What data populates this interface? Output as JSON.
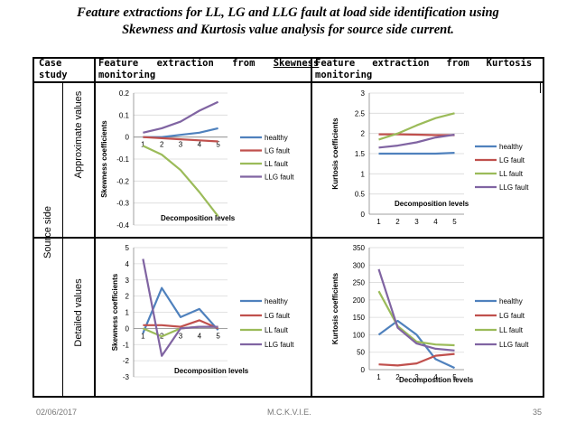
{
  "title_line1": "Feature extractions for LL, LG and LLG fault at load side identification using",
  "title_line2": "Skewness and Kurtosis value analysis for source side current.",
  "table": {
    "col1_line1": "Case",
    "col1_line2": "study",
    "col2_prefix": "Feature extraction from ",
    "col2_word": "Skewness",
    "col2_line2": "monitoring",
    "col3_line1": "Feature   extraction   from   Kurtosis",
    "col3_line2": "monitoring",
    "row_group": "Source side",
    "row1": "Approximate values",
    "row2": "Detailed values"
  },
  "footer": {
    "date": "02/06/2017",
    "org": "M.C.K.V.I.E.",
    "page": "35"
  },
  "colors": {
    "healthy": "#4f81bd",
    "lg": "#c0504d",
    "ll": "#9bbb59",
    "llg": "#8064a2",
    "grid": "#d9d9d9"
  },
  "chart_data": [
    {
      "type": "line",
      "id": "skew-approx",
      "xlabel": "Decomposition levels",
      "ylabel": "Skewness coefficients",
      "x": [
        1,
        2,
        3,
        4,
        5
      ],
      "ylim": [
        -0.4,
        0.2
      ],
      "yticks": [
        0.2,
        0.1,
        0,
        -0.1,
        -0.2,
        -0.3,
        -0.4
      ],
      "ytick_labels": [
        "0.2",
        "0.1",
        "0",
        "-0.1",
        "-0.2",
        "-0.3",
        "-0.4"
      ],
      "xaxis_at": 0,
      "legend": "right",
      "series": [
        {
          "name": "healthy",
          "values": [
            0.0,
            0.0,
            0.01,
            0.02,
            0.04
          ]
        },
        {
          "name": "LG fault",
          "values": [
            0.0,
            -0.005,
            -0.01,
            -0.015,
            -0.02
          ]
        },
        {
          "name": "LL fault",
          "values": [
            -0.04,
            -0.08,
            -0.15,
            -0.25,
            -0.36
          ]
        },
        {
          "name": "LLG fault",
          "values": [
            0.02,
            0.04,
            0.07,
            0.12,
            0.16
          ]
        }
      ]
    },
    {
      "type": "line",
      "id": "kurt-approx",
      "xlabel": "Decomposition levels",
      "ylabel": "Kurtosis coefficients",
      "x": [
        1,
        2,
        3,
        4,
        5
      ],
      "ylim": [
        0,
        3
      ],
      "yticks": [
        3,
        2.5,
        2,
        1.5,
        1,
        0.5,
        0
      ],
      "ytick_labels": [
        "3",
        "2.5",
        "2",
        "1.5",
        "1",
        "0.5",
        "0"
      ],
      "xaxis_at": 0,
      "legend": "right",
      "series": [
        {
          "name": "healthy",
          "values": [
            1.5,
            1.5,
            1.5,
            1.5,
            1.52
          ]
        },
        {
          "name": "LG fault",
          "values": [
            1.98,
            1.98,
            1.97,
            1.96,
            1.96
          ]
        },
        {
          "name": "LL fault",
          "values": [
            1.85,
            2.0,
            2.2,
            2.38,
            2.5
          ]
        },
        {
          "name": "LLG fault",
          "values": [
            1.65,
            1.7,
            1.78,
            1.9,
            1.97
          ]
        }
      ]
    },
    {
      "type": "line",
      "id": "skew-detail",
      "xlabel": "Decomposition levels",
      "ylabel": "Skewness coefficients",
      "x": [
        1,
        2,
        3,
        4,
        5
      ],
      "ylim": [
        -3,
        5
      ],
      "yticks": [
        5,
        4,
        3,
        2,
        1,
        0,
        -1,
        -2,
        -3
      ],
      "ytick_labels": [
        "5",
        "4",
        "3",
        "2",
        "1",
        "0",
        "-1",
        "-2",
        "-3"
      ],
      "xaxis_at": 0,
      "legend": "right",
      "series": [
        {
          "name": "healthy",
          "values": [
            -0.3,
            2.5,
            0.7,
            1.2,
            -0.1
          ]
        },
        {
          "name": "LG fault",
          "values": [
            0.2,
            0.2,
            0.1,
            0.5,
            0.0
          ]
        },
        {
          "name": "LL fault",
          "values": [
            0.0,
            -0.5,
            0.0,
            0.1,
            0.1
          ]
        },
        {
          "name": "LLG fault",
          "values": [
            4.3,
            -1.7,
            0.0,
            0.1,
            0.1
          ]
        }
      ]
    },
    {
      "type": "line",
      "id": "kurt-detail",
      "xlabel": "Decomposition levels",
      "ylabel": "Kurtosis coefficients",
      "x": [
        1,
        2,
        3,
        4,
        5
      ],
      "ylim": [
        0,
        350
      ],
      "yticks": [
        350,
        300,
        250,
        200,
        150,
        100,
        50,
        0
      ],
      "ytick_labels": [
        "350",
        "300",
        "250",
        "200",
        "150",
        "100",
        "50",
        "0"
      ],
      "xaxis_at": 0,
      "legend": "right",
      "series": [
        {
          "name": "healthy",
          "values": [
            100,
            140,
            100,
            30,
            5
          ]
        },
        {
          "name": "LG fault",
          "values": [
            15,
            12,
            18,
            40,
            45
          ]
        },
        {
          "name": "LL fault",
          "values": [
            225,
            125,
            80,
            72,
            70
          ]
        },
        {
          "name": "LLG fault",
          "values": [
            288,
            120,
            75,
            60,
            55
          ]
        }
      ]
    }
  ]
}
